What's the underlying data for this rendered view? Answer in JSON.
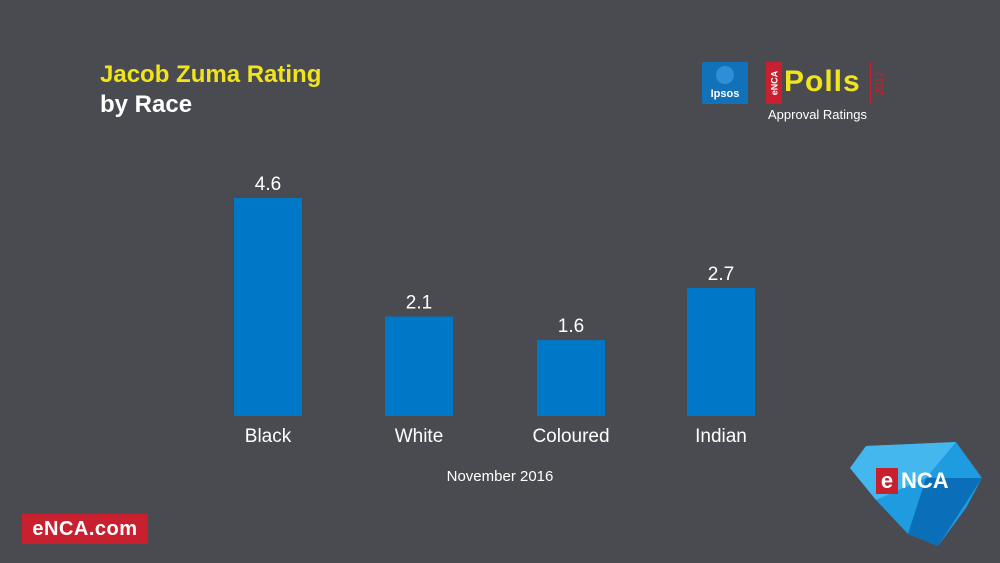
{
  "header": {
    "title": "Jacob Zuma Rating",
    "subtitle": "by Race"
  },
  "logos": {
    "ipsos": "Ipsos",
    "polls_brand_vertical": "eNCA",
    "polls_word": "Polls",
    "polls_year": "2017",
    "polls_subtitle": "Approval Ratings"
  },
  "chart_data": {
    "type": "bar",
    "categories": [
      "Black",
      "White",
      "Coloured",
      "Indian"
    ],
    "values": [
      4.6,
      2.1,
      1.6,
      2.7
    ],
    "data_labels": [
      "4.6",
      "2.1",
      "1.6",
      "2.7"
    ],
    "xlabel": "November 2016",
    "ylabel": "",
    "ylim": [
      0,
      4.6
    ],
    "grid": false,
    "legend": "none",
    "bar_color": "#0078c8",
    "label_color": "#ffffff"
  },
  "footer": {
    "site": "eNCA.com",
    "badge_e": "e",
    "badge_rest": "NCA"
  },
  "colors": {
    "background": "#494b50",
    "title": "#f0e41c",
    "accent_red": "#c8202f",
    "badge_blue": "#29a3e0"
  }
}
